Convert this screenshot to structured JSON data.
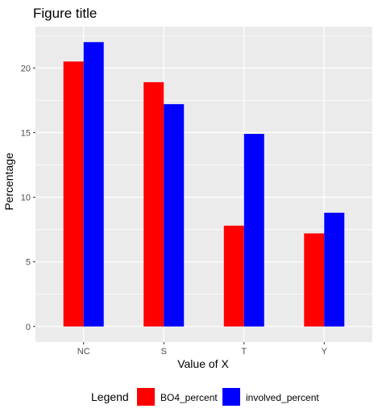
{
  "chart_data": {
    "type": "bar",
    "title": "Figure title",
    "xlabel": "Value of X",
    "ylabel": "Percentage",
    "categories": [
      "NC",
      "S",
      "T",
      "Y"
    ],
    "ylim": [
      -1.2,
      23.2
    ],
    "yticks": [
      0,
      5,
      10,
      15,
      20
    ],
    "ytick_labels": [
      "0",
      "5",
      "10",
      "15",
      "20"
    ],
    "grid": true,
    "legend_position": "bottom",
    "legend_title": "Legend",
    "series": [
      {
        "name": "BO4_percent",
        "color": "#ff0000",
        "values": [
          20.5,
          18.9,
          7.8,
          7.2
        ]
      },
      {
        "name": "involved_percent",
        "color": "#0000ff",
        "values": [
          22.0,
          17.2,
          14.9,
          8.8
        ]
      }
    ],
    "panel_color": "#ebebeb",
    "grid_color": "#ffffff"
  }
}
